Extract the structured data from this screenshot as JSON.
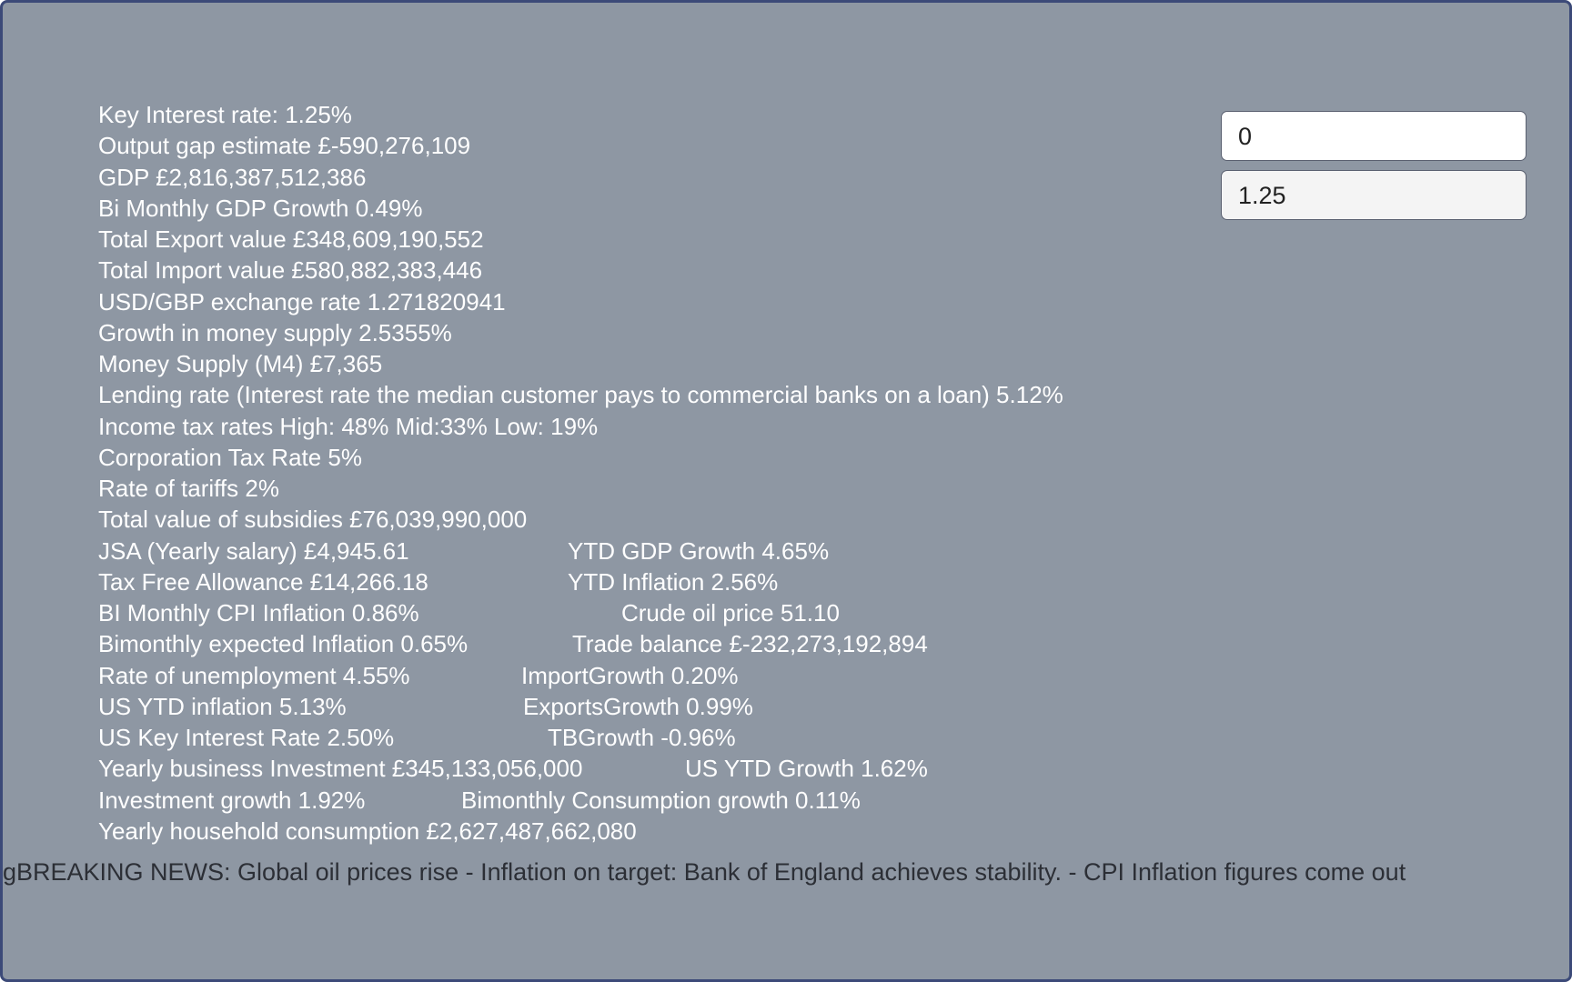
{
  "stats": [
    {
      "left": "Key Interest rate: 1.25%"
    },
    {
      "left": "Output gap estimate £-590,276,109"
    },
    {
      "left": "GDP £2,816,387,512,386"
    },
    {
      "left": "Bi Monthly GDP Growth 0.49%"
    },
    {
      "left": "Total Export value £348,609,190,552"
    },
    {
      "left": "Total Import value £580,882,383,446"
    },
    {
      "left": "USD/GBP exchange rate 1.271820941"
    },
    {
      "left": "Growth in money supply 2.5355%"
    },
    {
      "left": "Money Supply (M4) £7,365"
    },
    {
      "left": "Lending rate (Interest rate the median customer pays to commercial banks on a loan) 5.12%"
    },
    {
      "left": "Income tax rates High: 48% Mid:33% Low: 19%"
    },
    {
      "left": "Corporation Tax Rate 5%"
    },
    {
      "left": "Rate of tariffs 2%"
    },
    {
      "left": "Total value of subsidies £76,039,990,000"
    },
    {
      "left": "JSA (Yearly salary) £4,945.61",
      "right": "YTD GDP Growth 4.65%"
    },
    {
      "left": "Tax Free Allowance £14,266.18",
      "right": "YTD Inflation 2.56%"
    },
    {
      "left": "BI Monthly CPI Inflation 0.86%",
      "right": "Crude oil price 51.10"
    },
    {
      "left": "Bimonthly expected Inflation 0.65%",
      "right": "Trade balance £-232,273,192,894"
    },
    {
      "left": "Rate of unemployment 4.55%",
      "right": "ImportGrowth 0.20%"
    },
    {
      "left": "US YTD inflation 5.13%",
      "right": "ExportsGrowth 0.99%"
    },
    {
      "left": "US Key Interest Rate 2.50%",
      "right": "TBGrowth -0.96%"
    },
    {
      "left": "Yearly business Investment £345,133,056,000",
      "right": "US YTD Growth 1.62%"
    },
    {
      "left": "Investment growth 1.92%",
      "right": "Bimonthly Consumption growth 0.11%"
    },
    {
      "left": "Yearly household consumption £2,627,487,662,080"
    }
  ],
  "inputs": [
    "0",
    "1.25"
  ],
  "ticker": "gBREAKING NEWS: Global oil prices rise - Inflation on target: Bank of England achieves stability. - CPI Inflation figures come out"
}
